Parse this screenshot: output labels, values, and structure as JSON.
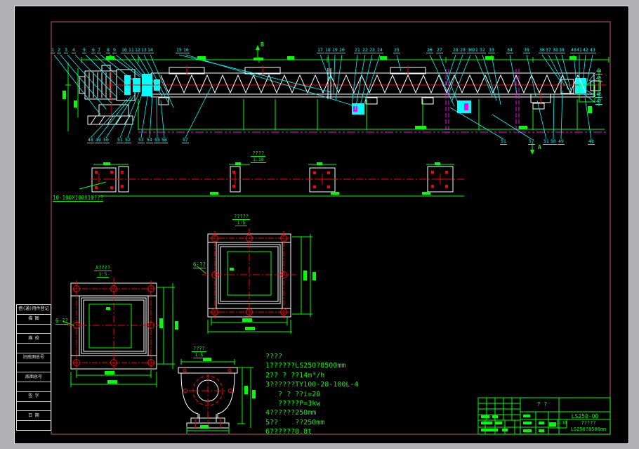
{
  "section_markers": {
    "b": "B",
    "a": "A"
  },
  "callouts": {
    "top_left": [
      "1",
      "2",
      "3",
      "4",
      "5",
      "6",
      "7",
      "8",
      "9",
      "10",
      "11",
      "12",
      "13",
      "14",
      "15",
      "16"
    ],
    "top_mid": [
      "17",
      "18",
      "19",
      "20",
      "21",
      "22",
      "23",
      "24",
      "25",
      "26",
      "27"
    ],
    "top_right": [
      "28",
      "29",
      "30",
      "31",
      "32",
      "33",
      "34",
      "35",
      "36",
      "37",
      "38",
      "39",
      "40",
      "41",
      "42",
      "43"
    ],
    "right_side": [
      "44",
      "45",
      "46",
      "47"
    ],
    "bottom_left": [
      "48",
      "49",
      "50",
      "51",
      "52",
      "53",
      "54",
      "55",
      "56",
      "57"
    ],
    "bottom_right": [
      "51",
      "57",
      "51",
      "50",
      "49",
      "48"
    ]
  },
  "plan_view": {
    "title": "????",
    "scale": "1:10",
    "leader_note": "10-100X100X10???"
  },
  "detail_outlet": {
    "title": "?????",
    "scale": "1:5",
    "leader_note": "6-??"
  },
  "detail_inlet": {
    "title": "A????",
    "scale": "1:5",
    "leader_note": "6-??"
  },
  "detail_end": {
    "title": "????",
    "scale": "1:5"
  },
  "notes": {
    "lines": [
      "????",
      "1??????LS250?8500mm",
      "2?? ? ??14m³/h",
      "3??????TY100-28-100L-4",
      "   ? ? ??i=28",
      "   ?????P=3kw",
      "4??????250mm",
      "5??    ??250mm",
      "6??????0.8t"
    ]
  },
  "title_block": {
    "part_label": "?  ?",
    "drawing_no": "LS250-00",
    "title_line1": "?????",
    "title_line2": "LS250?8500mm",
    "scale": "1:10"
  },
  "margin_block": {
    "rows": [
      "借(通)用件登记",
      "描  图",
      "",
      "描  校",
      "",
      "旧底图总号",
      "",
      "底图总号",
      "",
      "签  字",
      "",
      "日  期",
      ""
    ]
  },
  "colors": {
    "line_green": "#00ff00",
    "line_cyan": "#00ffff",
    "line_red": "#ff0000",
    "line_white": "#ffffff",
    "line_magenta": "#ff00ff",
    "sheet_border": "#a34d68",
    "frame_gray": "#b1b1b3",
    "canvas_bg": "#000000"
  }
}
